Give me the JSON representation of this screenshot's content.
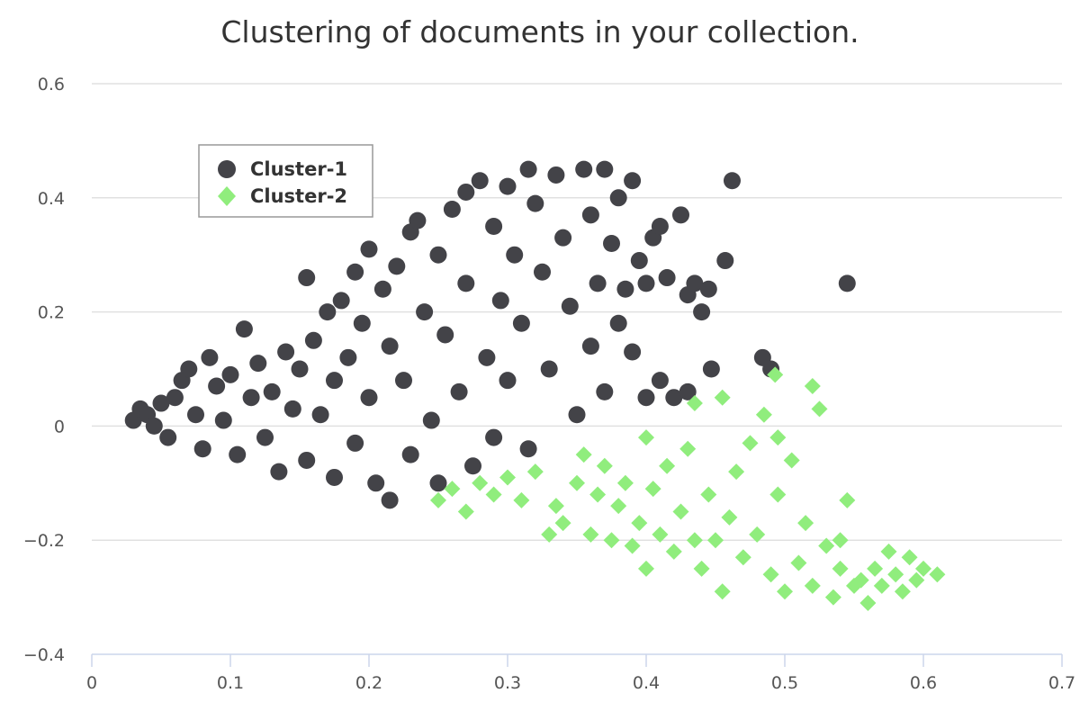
{
  "chart_data": {
    "type": "scatter",
    "title": "Clustering of documents in your collection.",
    "xlabel": "",
    "ylabel": "",
    "xlim": [
      0,
      0.7
    ],
    "ylim": [
      -0.4,
      0.6
    ],
    "x_ticks": [
      0,
      0.1,
      0.2,
      0.3,
      0.4,
      0.5,
      0.6,
      0.7
    ],
    "x_tick_labels": [
      "0",
      "0.1",
      "0.2",
      "0.3",
      "0.4",
      "0.5",
      "0.6",
      "0.7"
    ],
    "y_ticks": [
      -0.4,
      -0.2,
      0,
      0.2,
      0.4,
      0.6
    ],
    "y_tick_labels": [
      "−0.4",
      "−0.2",
      "0",
      "0.2",
      "0.4",
      "0.6"
    ],
    "grid": true,
    "legend_position": "top-left",
    "series": [
      {
        "name": "Cluster-1",
        "color": "#434348",
        "marker": "circle",
        "points": [
          [
            0.03,
            0.01
          ],
          [
            0.035,
            0.03
          ],
          [
            0.04,
            0.02
          ],
          [
            0.045,
            0.0
          ],
          [
            0.05,
            0.04
          ],
          [
            0.055,
            -0.02
          ],
          [
            0.06,
            0.05
          ],
          [
            0.065,
            0.08
          ],
          [
            0.07,
            0.1
          ],
          [
            0.075,
            0.02
          ],
          [
            0.08,
            -0.04
          ],
          [
            0.085,
            0.12
          ],
          [
            0.09,
            0.07
          ],
          [
            0.095,
            0.01
          ],
          [
            0.1,
            0.09
          ],
          [
            0.105,
            -0.05
          ],
          [
            0.11,
            0.17
          ],
          [
            0.115,
            0.05
          ],
          [
            0.12,
            0.11
          ],
          [
            0.125,
            -0.02
          ],
          [
            0.13,
            0.06
          ],
          [
            0.135,
            -0.08
          ],
          [
            0.14,
            0.13
          ],
          [
            0.145,
            0.03
          ],
          [
            0.15,
            0.1
          ],
          [
            0.155,
            0.26
          ],
          [
            0.155,
            -0.06
          ],
          [
            0.16,
            0.15
          ],
          [
            0.165,
            0.02
          ],
          [
            0.17,
            0.2
          ],
          [
            0.175,
            0.08
          ],
          [
            0.175,
            -0.09
          ],
          [
            0.18,
            0.22
          ],
          [
            0.185,
            0.12
          ],
          [
            0.19,
            -0.03
          ],
          [
            0.19,
            0.27
          ],
          [
            0.195,
            0.18
          ],
          [
            0.2,
            0.31
          ],
          [
            0.2,
            0.05
          ],
          [
            0.205,
            -0.1
          ],
          [
            0.21,
            0.24
          ],
          [
            0.215,
            0.14
          ],
          [
            0.215,
            -0.13
          ],
          [
            0.22,
            0.28
          ],
          [
            0.225,
            0.08
          ],
          [
            0.23,
            0.34
          ],
          [
            0.23,
            -0.05
          ],
          [
            0.235,
            0.36
          ],
          [
            0.24,
            0.2
          ],
          [
            0.245,
            0.01
          ],
          [
            0.25,
            0.3
          ],
          [
            0.25,
            -0.1
          ],
          [
            0.255,
            0.16
          ],
          [
            0.26,
            0.38
          ],
          [
            0.265,
            0.06
          ],
          [
            0.27,
            0.41
          ],
          [
            0.27,
            0.25
          ],
          [
            0.275,
            -0.07
          ],
          [
            0.28,
            0.43
          ],
          [
            0.285,
            0.12
          ],
          [
            0.29,
            0.35
          ],
          [
            0.29,
            -0.02
          ],
          [
            0.295,
            0.22
          ],
          [
            0.3,
            0.42
          ],
          [
            0.3,
            0.08
          ],
          [
            0.305,
            0.3
          ],
          [
            0.31,
            0.18
          ],
          [
            0.315,
            0.45
          ],
          [
            0.315,
            -0.04
          ],
          [
            0.32,
            0.39
          ],
          [
            0.325,
            0.27
          ],
          [
            0.33,
            0.1
          ],
          [
            0.335,
            0.44
          ],
          [
            0.34,
            0.33
          ],
          [
            0.345,
            0.21
          ],
          [
            0.35,
            0.02
          ],
          [
            0.355,
            0.45
          ],
          [
            0.36,
            0.37
          ],
          [
            0.36,
            0.14
          ],
          [
            0.365,
            0.25
          ],
          [
            0.37,
            0.45
          ],
          [
            0.37,
            0.06
          ],
          [
            0.375,
            0.32
          ],
          [
            0.38,
            0.4
          ],
          [
            0.38,
            0.18
          ],
          [
            0.385,
            0.24
          ],
          [
            0.39,
            0.43
          ],
          [
            0.39,
            0.13
          ],
          [
            0.395,
            0.29
          ],
          [
            0.4,
            0.05
          ],
          [
            0.4,
            0.25
          ],
          [
            0.405,
            0.33
          ],
          [
            0.41,
            0.35
          ],
          [
            0.41,
            0.08
          ],
          [
            0.415,
            0.26
          ],
          [
            0.42,
            0.05
          ],
          [
            0.425,
            0.37
          ],
          [
            0.43,
            0.23
          ],
          [
            0.43,
            0.06
          ],
          [
            0.435,
            0.25
          ],
          [
            0.44,
            0.2
          ],
          [
            0.445,
            0.24
          ],
          [
            0.447,
            0.1
          ],
          [
            0.457,
            0.29
          ],
          [
            0.462,
            0.43
          ],
          [
            0.484,
            0.12
          ],
          [
            0.49,
            0.1
          ],
          [
            0.545,
            0.25
          ]
        ]
      },
      {
        "name": "Cluster-2",
        "color": "#90ed7d",
        "marker": "diamond",
        "points": [
          [
            0.25,
            -0.13
          ],
          [
            0.26,
            -0.11
          ],
          [
            0.27,
            -0.15
          ],
          [
            0.28,
            -0.1
          ],
          [
            0.29,
            -0.12
          ],
          [
            0.3,
            -0.09
          ],
          [
            0.31,
            -0.13
          ],
          [
            0.32,
            -0.08
          ],
          [
            0.33,
            -0.19
          ],
          [
            0.335,
            -0.14
          ],
          [
            0.34,
            -0.17
          ],
          [
            0.35,
            -0.1
          ],
          [
            0.355,
            -0.05
          ],
          [
            0.36,
            -0.19
          ],
          [
            0.365,
            -0.12
          ],
          [
            0.37,
            -0.07
          ],
          [
            0.375,
            -0.2
          ],
          [
            0.38,
            -0.14
          ],
          [
            0.385,
            -0.1
          ],
          [
            0.39,
            -0.21
          ],
          [
            0.395,
            -0.17
          ],
          [
            0.4,
            -0.02
          ],
          [
            0.405,
            -0.11
          ],
          [
            0.41,
            -0.19
          ],
          [
            0.415,
            -0.07
          ],
          [
            0.42,
            -0.22
          ],
          [
            0.425,
            -0.15
          ],
          [
            0.43,
            -0.04
          ],
          [
            0.435,
            -0.2
          ],
          [
            0.44,
            -0.25
          ],
          [
            0.445,
            -0.12
          ],
          [
            0.45,
            -0.2
          ],
          [
            0.455,
            -0.29
          ],
          [
            0.455,
            0.05
          ],
          [
            0.46,
            -0.16
          ],
          [
            0.465,
            -0.08
          ],
          [
            0.47,
            -0.23
          ],
          [
            0.475,
            -0.03
          ],
          [
            0.48,
            -0.19
          ],
          [
            0.485,
            0.02
          ],
          [
            0.49,
            -0.26
          ],
          [
            0.495,
            -0.12
          ],
          [
            0.5,
            -0.29
          ],
          [
            0.505,
            -0.06
          ],
          [
            0.51,
            -0.24
          ],
          [
            0.515,
            -0.17
          ],
          [
            0.52,
            -0.28
          ],
          [
            0.52,
            0.07
          ],
          [
            0.525,
            0.03
          ],
          [
            0.53,
            -0.21
          ],
          [
            0.535,
            -0.3
          ],
          [
            0.54,
            -0.25
          ],
          [
            0.545,
            -0.13
          ],
          [
            0.55,
            -0.28
          ],
          [
            0.555,
            -0.27
          ],
          [
            0.56,
            -0.31
          ],
          [
            0.565,
            -0.25
          ],
          [
            0.57,
            -0.28
          ],
          [
            0.575,
            -0.22
          ],
          [
            0.58,
            -0.26
          ],
          [
            0.585,
            -0.29
          ],
          [
            0.59,
            -0.23
          ],
          [
            0.595,
            -0.27
          ],
          [
            0.6,
            -0.25
          ],
          [
            0.61,
            -0.26
          ],
          [
            0.493,
            0.09
          ],
          [
            0.435,
            0.04
          ],
          [
            0.495,
            -0.02
          ],
          [
            0.54,
            -0.2
          ],
          [
            0.4,
            -0.25
          ]
        ]
      }
    ]
  }
}
